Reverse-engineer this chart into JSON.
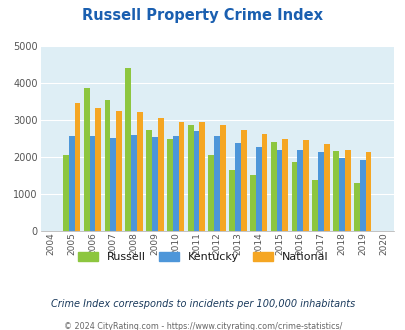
{
  "title": "Russell Property Crime Index",
  "valid_years": [
    2005,
    2006,
    2007,
    2008,
    2009,
    2010,
    2011,
    2012,
    2013,
    2014,
    2015,
    2016,
    2017,
    2018,
    2019
  ],
  "russell": [
    2050,
    3880,
    3550,
    4420,
    2720,
    2500,
    2880,
    2050,
    1660,
    1510,
    2400,
    1860,
    1380,
    2160,
    1300
  ],
  "kentucky": [
    2560,
    2560,
    2510,
    2600,
    2530,
    2560,
    2700,
    2570,
    2380,
    2280,
    2200,
    2200,
    2130,
    1980,
    1920
  ],
  "national": [
    3450,
    3340,
    3250,
    3220,
    3060,
    2960,
    2940,
    2880,
    2730,
    2620,
    2490,
    2460,
    2360,
    2200,
    2130
  ],
  "all_years": [
    2004,
    2005,
    2006,
    2007,
    2008,
    2009,
    2010,
    2011,
    2012,
    2013,
    2014,
    2015,
    2016,
    2017,
    2018,
    2019,
    2020
  ],
  "russell_color": "#8dc63f",
  "kentucky_color": "#4d96d9",
  "national_color": "#f5a623",
  "bg_color": "#deeef5",
  "ylim": [
    0,
    5000
  ],
  "yticks": [
    0,
    1000,
    2000,
    3000,
    4000,
    5000
  ],
  "subtitle": "Crime Index corresponds to incidents per 100,000 inhabitants",
  "footer": "© 2024 CityRating.com - https://www.cityrating.com/crime-statistics/",
  "title_color": "#1a5fb0",
  "subtitle_color": "#1a3a5c",
  "footer_color": "#666666",
  "footer_link_color": "#3355aa"
}
